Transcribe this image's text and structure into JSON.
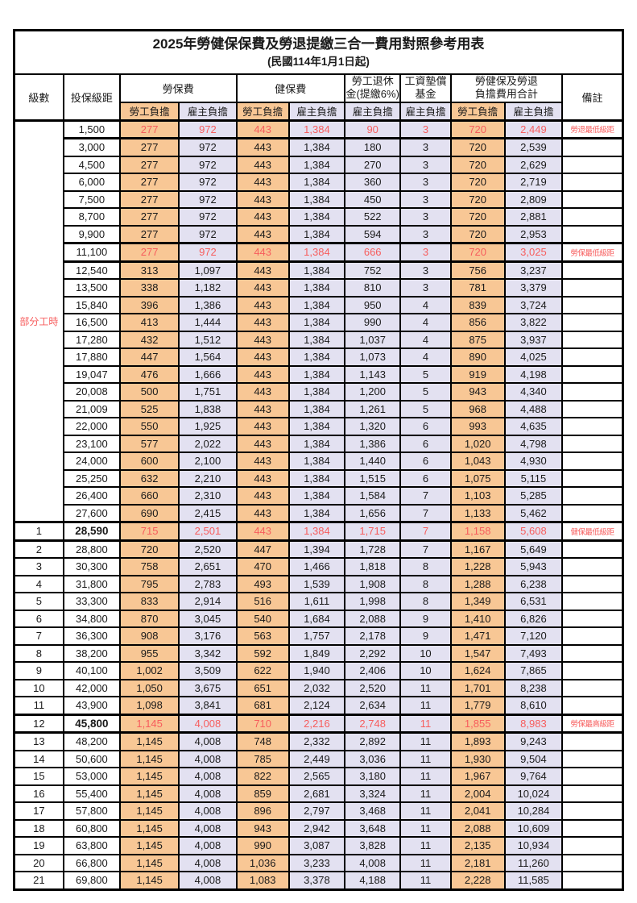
{
  "title": {
    "line1": "2025年勞健保保費及勞退提繳三合一費用對照參考用表",
    "line2": "(民國114年1月1日起)"
  },
  "header": {
    "level": "級數",
    "bracket": "投保級距",
    "labor_ins": "勞保費",
    "health_ins": "健保費",
    "pension_line1": "勞工退休",
    "pension_line2": "金(提繳6%)",
    "wage_fund_line1": "工資墊償",
    "wage_fund_line2": "基金",
    "total_line1": "勞健保及勞退",
    "total_line2": "負擔費用合計",
    "remark": "備註",
    "employee": "勞工負擔",
    "employer": "雇主負擔"
  },
  "colors": {
    "employee_bg": "#F8C795",
    "employer_bg": "#E3E1F1",
    "highlight_text": "#F75D5D",
    "border": "#000000",
    "text": "#1A1A1A",
    "background": "#FFFFFF"
  },
  "part_time": {
    "label": "部分工時",
    "span": 23
  },
  "rows": [
    {
      "seq": "",
      "bracket": "1,500",
      "values": [
        "277",
        "972",
        "443",
        "1,384",
        "90",
        "3",
        "720",
        "2,449"
      ],
      "remark": "勞退最低級距",
      "highlight": true,
      "bold_bracket": false
    },
    {
      "seq": "",
      "bracket": "3,000",
      "values": [
        "277",
        "972",
        "443",
        "1,384",
        "180",
        "3",
        "720",
        "2,539"
      ],
      "remark": "",
      "highlight": false,
      "bold_bracket": false
    },
    {
      "seq": "",
      "bracket": "4,500",
      "values": [
        "277",
        "972",
        "443",
        "1,384",
        "270",
        "3",
        "720",
        "2,629"
      ],
      "remark": "",
      "highlight": false,
      "bold_bracket": false
    },
    {
      "seq": "",
      "bracket": "6,000",
      "values": [
        "277",
        "972",
        "443",
        "1,384",
        "360",
        "3",
        "720",
        "2,719"
      ],
      "remark": "",
      "highlight": false,
      "bold_bracket": false
    },
    {
      "seq": "",
      "bracket": "7,500",
      "values": [
        "277",
        "972",
        "443",
        "1,384",
        "450",
        "3",
        "720",
        "2,809"
      ],
      "remark": "",
      "highlight": false,
      "bold_bracket": false
    },
    {
      "seq": "",
      "bracket": "8,700",
      "values": [
        "277",
        "972",
        "443",
        "1,384",
        "522",
        "3",
        "720",
        "2,881"
      ],
      "remark": "",
      "highlight": false,
      "bold_bracket": false
    },
    {
      "seq": "",
      "bracket": "9,900",
      "values": [
        "277",
        "972",
        "443",
        "1,384",
        "594",
        "3",
        "720",
        "2,953"
      ],
      "remark": "",
      "highlight": false,
      "bold_bracket": false
    },
    {
      "seq": "",
      "bracket": "11,100",
      "values": [
        "277",
        "972",
        "443",
        "1,384",
        "666",
        "3",
        "720",
        "3,025"
      ],
      "remark": "勞保最低級距",
      "highlight": true,
      "bold_bracket": false
    },
    {
      "seq": "",
      "bracket": "12,540",
      "values": [
        "313",
        "1,097",
        "443",
        "1,384",
        "752",
        "3",
        "756",
        "3,237"
      ],
      "remark": "",
      "highlight": false,
      "bold_bracket": false
    },
    {
      "seq": "",
      "bracket": "13,500",
      "values": [
        "338",
        "1,182",
        "443",
        "1,384",
        "810",
        "3",
        "781",
        "3,379"
      ],
      "remark": "",
      "highlight": false,
      "bold_bracket": false
    },
    {
      "seq": "",
      "bracket": "15,840",
      "values": [
        "396",
        "1,386",
        "443",
        "1,384",
        "950",
        "4",
        "839",
        "3,724"
      ],
      "remark": "",
      "highlight": false,
      "bold_bracket": false
    },
    {
      "seq": "",
      "bracket": "16,500",
      "values": [
        "413",
        "1,444",
        "443",
        "1,384",
        "990",
        "4",
        "856",
        "3,822"
      ],
      "remark": "",
      "highlight": false,
      "bold_bracket": false
    },
    {
      "seq": "",
      "bracket": "17,280",
      "values": [
        "432",
        "1,512",
        "443",
        "1,384",
        "1,037",
        "4",
        "875",
        "3,937"
      ],
      "remark": "",
      "highlight": false,
      "bold_bracket": false
    },
    {
      "seq": "",
      "bracket": "17,880",
      "values": [
        "447",
        "1,564",
        "443",
        "1,384",
        "1,073",
        "4",
        "890",
        "4,025"
      ],
      "remark": "",
      "highlight": false,
      "bold_bracket": false
    },
    {
      "seq": "",
      "bracket": "19,047",
      "values": [
        "476",
        "1,666",
        "443",
        "1,384",
        "1,143",
        "5",
        "919",
        "4,198"
      ],
      "remark": "",
      "highlight": false,
      "bold_bracket": false
    },
    {
      "seq": "",
      "bracket": "20,008",
      "values": [
        "500",
        "1,751",
        "443",
        "1,384",
        "1,200",
        "5",
        "943",
        "4,340"
      ],
      "remark": "",
      "highlight": false,
      "bold_bracket": false
    },
    {
      "seq": "",
      "bracket": "21,009",
      "values": [
        "525",
        "1,838",
        "443",
        "1,384",
        "1,261",
        "5",
        "968",
        "4,488"
      ],
      "remark": "",
      "highlight": false,
      "bold_bracket": false
    },
    {
      "seq": "",
      "bracket": "22,000",
      "values": [
        "550",
        "1,925",
        "443",
        "1,384",
        "1,320",
        "6",
        "993",
        "4,635"
      ],
      "remark": "",
      "highlight": false,
      "bold_bracket": false
    },
    {
      "seq": "",
      "bracket": "23,100",
      "values": [
        "577",
        "2,022",
        "443",
        "1,384",
        "1,386",
        "6",
        "1,020",
        "4,798"
      ],
      "remark": "",
      "highlight": false,
      "bold_bracket": false
    },
    {
      "seq": "",
      "bracket": "24,000",
      "values": [
        "600",
        "2,100",
        "443",
        "1,384",
        "1,440",
        "6",
        "1,043",
        "4,930"
      ],
      "remark": "",
      "highlight": false,
      "bold_bracket": false
    },
    {
      "seq": "",
      "bracket": "25,250",
      "values": [
        "632",
        "2,210",
        "443",
        "1,384",
        "1,515",
        "6",
        "1,075",
        "5,115"
      ],
      "remark": "",
      "highlight": false,
      "bold_bracket": false
    },
    {
      "seq": "",
      "bracket": "26,400",
      "values": [
        "660",
        "2,310",
        "443",
        "1,384",
        "1,584",
        "7",
        "1,103",
        "5,285"
      ],
      "remark": "",
      "highlight": false,
      "bold_bracket": false
    },
    {
      "seq": "",
      "bracket": "27,600",
      "values": [
        "690",
        "2,415",
        "443",
        "1,384",
        "1,656",
        "7",
        "1,133",
        "5,462"
      ],
      "remark": "",
      "highlight": false,
      "bold_bracket": false
    },
    {
      "seq": "1",
      "bracket": "28,590",
      "values": [
        "715",
        "2,501",
        "443",
        "1,384",
        "1,715",
        "7",
        "1,158",
        "5,608"
      ],
      "remark": "健保最低級距",
      "highlight": true,
      "bold_bracket": true
    },
    {
      "seq": "2",
      "bracket": "28,800",
      "values": [
        "720",
        "2,520",
        "447",
        "1,394",
        "1,728",
        "7",
        "1,167",
        "5,649"
      ],
      "remark": "",
      "highlight": false,
      "bold_bracket": false
    },
    {
      "seq": "3",
      "bracket": "30,300",
      "values": [
        "758",
        "2,651",
        "470",
        "1,466",
        "1,818",
        "8",
        "1,228",
        "5,943"
      ],
      "remark": "",
      "highlight": false,
      "bold_bracket": false
    },
    {
      "seq": "4",
      "bracket": "31,800",
      "values": [
        "795",
        "2,783",
        "493",
        "1,539",
        "1,908",
        "8",
        "1,288",
        "6,238"
      ],
      "remark": "",
      "highlight": false,
      "bold_bracket": false
    },
    {
      "seq": "5",
      "bracket": "33,300",
      "values": [
        "833",
        "2,914",
        "516",
        "1,611",
        "1,998",
        "8",
        "1,349",
        "6,531"
      ],
      "remark": "",
      "highlight": false,
      "bold_bracket": false
    },
    {
      "seq": "6",
      "bracket": "34,800",
      "values": [
        "870",
        "3,045",
        "540",
        "1,684",
        "2,088",
        "9",
        "1,410",
        "6,826"
      ],
      "remark": "",
      "highlight": false,
      "bold_bracket": false
    },
    {
      "seq": "7",
      "bracket": "36,300",
      "values": [
        "908",
        "3,176",
        "563",
        "1,757",
        "2,178",
        "9",
        "1,471",
        "7,120"
      ],
      "remark": "",
      "highlight": false,
      "bold_bracket": false
    },
    {
      "seq": "8",
      "bracket": "38,200",
      "values": [
        "955",
        "3,342",
        "592",
        "1,849",
        "2,292",
        "10",
        "1,547",
        "7,493"
      ],
      "remark": "",
      "highlight": false,
      "bold_bracket": false
    },
    {
      "seq": "9",
      "bracket": "40,100",
      "values": [
        "1,002",
        "3,509",
        "622",
        "1,940",
        "2,406",
        "10",
        "1,624",
        "7,865"
      ],
      "remark": "",
      "highlight": false,
      "bold_bracket": false
    },
    {
      "seq": "10",
      "bracket": "42,000",
      "values": [
        "1,050",
        "3,675",
        "651",
        "2,032",
        "2,520",
        "11",
        "1,701",
        "8,238"
      ],
      "remark": "",
      "highlight": false,
      "bold_bracket": false
    },
    {
      "seq": "11",
      "bracket": "43,900",
      "values": [
        "1,098",
        "3,841",
        "681",
        "2,124",
        "2,634",
        "11",
        "1,779",
        "8,610"
      ],
      "remark": "",
      "highlight": false,
      "bold_bracket": false
    },
    {
      "seq": "12",
      "bracket": "45,800",
      "values": [
        "1,145",
        "4,008",
        "710",
        "2,216",
        "2,748",
        "11",
        "1,855",
        "8,983"
      ],
      "remark": "勞保最高級距",
      "highlight": true,
      "bold_bracket": true
    },
    {
      "seq": "13",
      "bracket": "48,200",
      "values": [
        "1,145",
        "4,008",
        "748",
        "2,332",
        "2,892",
        "11",
        "1,893",
        "9,243"
      ],
      "remark": "",
      "highlight": false,
      "bold_bracket": false
    },
    {
      "seq": "14",
      "bracket": "50,600",
      "values": [
        "1,145",
        "4,008",
        "785",
        "2,449",
        "3,036",
        "11",
        "1,930",
        "9,504"
      ],
      "remark": "",
      "highlight": false,
      "bold_bracket": false
    },
    {
      "seq": "15",
      "bracket": "53,000",
      "values": [
        "1,145",
        "4,008",
        "822",
        "2,565",
        "3,180",
        "11",
        "1,967",
        "9,764"
      ],
      "remark": "",
      "highlight": false,
      "bold_bracket": false
    },
    {
      "seq": "16",
      "bracket": "55,400",
      "values": [
        "1,145",
        "4,008",
        "859",
        "2,681",
        "3,324",
        "11",
        "2,004",
        "10,024"
      ],
      "remark": "",
      "highlight": false,
      "bold_bracket": false
    },
    {
      "seq": "17",
      "bracket": "57,800",
      "values": [
        "1,145",
        "4,008",
        "896",
        "2,797",
        "3,468",
        "11",
        "2,041",
        "10,284"
      ],
      "remark": "",
      "highlight": false,
      "bold_bracket": false
    },
    {
      "seq": "18",
      "bracket": "60,800",
      "values": [
        "1,145",
        "4,008",
        "943",
        "2,942",
        "3,648",
        "11",
        "2,088",
        "10,609"
      ],
      "remark": "",
      "highlight": false,
      "bold_bracket": false
    },
    {
      "seq": "19",
      "bracket": "63,800",
      "values": [
        "1,145",
        "4,008",
        "990",
        "3,087",
        "3,828",
        "11",
        "2,135",
        "10,934"
      ],
      "remark": "",
      "highlight": false,
      "bold_bracket": false
    },
    {
      "seq": "20",
      "bracket": "66,800",
      "values": [
        "1,145",
        "4,008",
        "1,036",
        "3,233",
        "4,008",
        "11",
        "2,181",
        "11,260"
      ],
      "remark": "",
      "highlight": false,
      "bold_bracket": false
    },
    {
      "seq": "21",
      "bracket": "69,800",
      "values": [
        "1,145",
        "4,008",
        "1,083",
        "3,378",
        "4,188",
        "11",
        "2,228",
        "11,585"
      ],
      "remark": "",
      "highlight": false,
      "bold_bracket": false
    }
  ]
}
